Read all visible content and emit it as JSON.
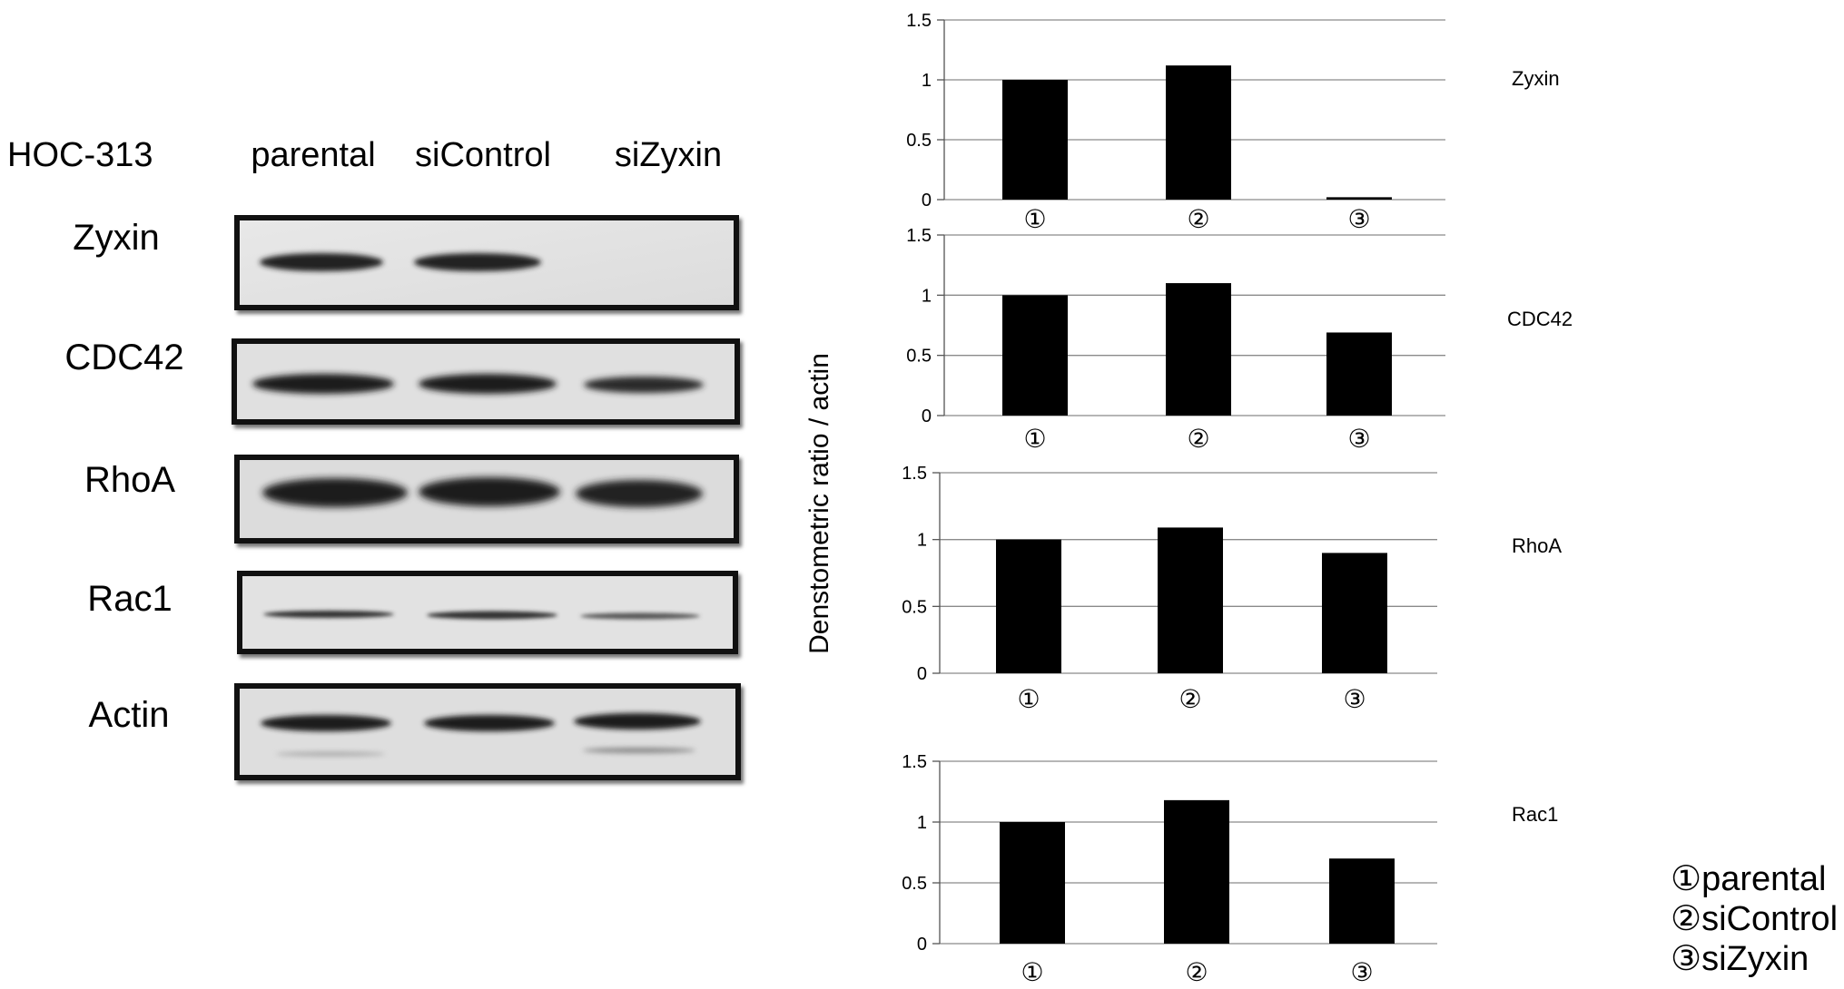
{
  "cell_line": "HOC-313",
  "lanes": [
    "parental",
    "siControl",
    "siZyxin"
  ],
  "blot": {
    "rows": [
      {
        "protein": "Zyxin",
        "band_intensity": [
          0.9,
          0.9,
          0.0
        ]
      },
      {
        "protein": "CDC42",
        "band_intensity": [
          1.0,
          1.0,
          0.85
        ]
      },
      {
        "protein": "RhoA",
        "band_intensity": [
          1.0,
          1.0,
          0.95
        ]
      },
      {
        "protein": "Rac1",
        "band_intensity": [
          0.55,
          0.6,
          0.45
        ]
      },
      {
        "protein": "Actin",
        "band_intensity": [
          0.85,
          0.85,
          0.85
        ]
      }
    ]
  },
  "shared_ylabel": "Denstometric ratio / actin",
  "legend": [
    "①parental",
    "②siControl",
    "③siZyxin"
  ],
  "chart_data": [
    {
      "type": "bar",
      "title": "Zyxin",
      "categories": [
        "①",
        "②",
        "③"
      ],
      "values": [
        1.0,
        1.12,
        0.02
      ],
      "ylim": [
        0,
        1.5
      ],
      "yticks": [
        "0",
        "0.5",
        "1",
        "1.5"
      ],
      "grid": true,
      "bar_color": "#000000"
    },
    {
      "type": "bar",
      "title": "CDC42",
      "categories": [
        "①",
        "②",
        "③"
      ],
      "values": [
        1.0,
        1.1,
        0.69
      ],
      "ylim": [
        0,
        1.5
      ],
      "yticks": [
        "0",
        "0.5",
        "1",
        "1.5"
      ],
      "grid": true,
      "bar_color": "#000000"
    },
    {
      "type": "bar",
      "title": "RhoA",
      "categories": [
        "①",
        "②",
        "③"
      ],
      "values": [
        1.0,
        1.09,
        0.9
      ],
      "ylim": [
        0,
        1.5
      ],
      "yticks": [
        "0",
        "0.5",
        "1",
        "1.5"
      ],
      "grid": true,
      "bar_color": "#000000"
    },
    {
      "type": "bar",
      "title": "Rac1",
      "categories": [
        "①",
        "②",
        "③"
      ],
      "values": [
        1.0,
        1.18,
        0.7
      ],
      "ylim": [
        0,
        1.5
      ],
      "yticks": [
        "0",
        "0.5",
        "1",
        "1.5"
      ],
      "grid": true,
      "bar_color": "#000000"
    }
  ]
}
